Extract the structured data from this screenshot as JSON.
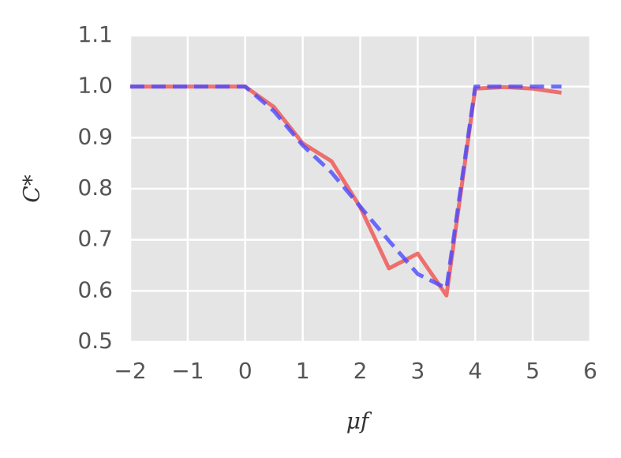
{
  "chart_data": {
    "type": "line",
    "xlabel": "μf",
    "ylabel": "C*",
    "x": [
      -2,
      -1.5,
      -1,
      -0.5,
      0,
      0.5,
      1,
      1.5,
      2,
      2.5,
      3,
      3.5,
      4,
      4.5,
      5,
      5.5
    ],
    "series": [
      {
        "color": "#f05050",
        "style": "solid",
        "values": [
          1.0,
          1.0,
          1.0,
          1.0,
          1.0,
          0.96,
          0.889,
          0.854,
          0.764,
          0.644,
          0.673,
          0.591,
          0.996,
          0.999,
          0.996,
          0.988
        ]
      },
      {
        "color": "#4a4aff",
        "style": "dashed",
        "values": [
          1.0,
          1.0,
          1.0,
          1.0,
          1.0,
          0.952,
          0.885,
          0.832,
          0.765,
          0.698,
          0.633,
          0.605,
          1.0,
          1.0,
          1.0,
          1.0
        ]
      }
    ],
    "xlim": [
      -2,
      6
    ],
    "ylim": [
      0.5,
      1.1
    ],
    "xticks": [
      {
        "value": -2,
        "label": "−2"
      },
      {
        "value": -1,
        "label": "−1"
      },
      0,
      1,
      2,
      3,
      4,
      5,
      6
    ],
    "yticks": [
      0.5,
      0.6,
      0.7,
      0.8,
      0.9,
      {
        "value": 1.0,
        "label": "1.0"
      },
      1.1
    ],
    "grid": true
  }
}
